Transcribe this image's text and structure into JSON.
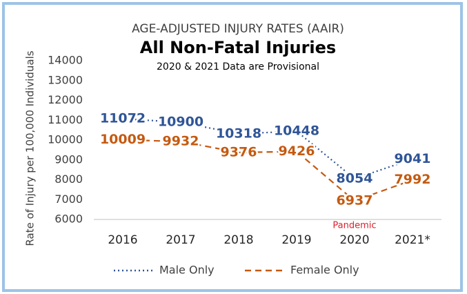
{
  "chart_data": {
    "type": "line",
    "title": "AGE-ADJUSTED INJURY RATES (AAIR)",
    "subtitle": "All Non-Fatal Injuries",
    "note": "2020 & 2021 Data are Provisional",
    "y_label": "Rate of Injury per 100,000 Individuals",
    "annotation": "Pandemic",
    "categories": [
      "2016",
      "2017",
      "2018",
      "2019",
      "2020",
      "2021*"
    ],
    "series": [
      {
        "name": "Male Only",
        "color": "#2f5597",
        "dash": "dotted",
        "values": [
          11072,
          10900,
          10318,
          10448,
          8054,
          9041
        ]
      },
      {
        "name": "Female Only",
        "color": "#c55a11",
        "dash": "dashed",
        "values": [
          10009,
          9932,
          9376,
          9426,
          6937,
          7992
        ]
      }
    ],
    "ylim": [
      6000,
      14000
    ],
    "yticks": [
      6000,
      7000,
      8000,
      9000,
      10000,
      11000,
      12000,
      13000,
      14000
    ],
    "grid": false,
    "legend": "bottom"
  }
}
